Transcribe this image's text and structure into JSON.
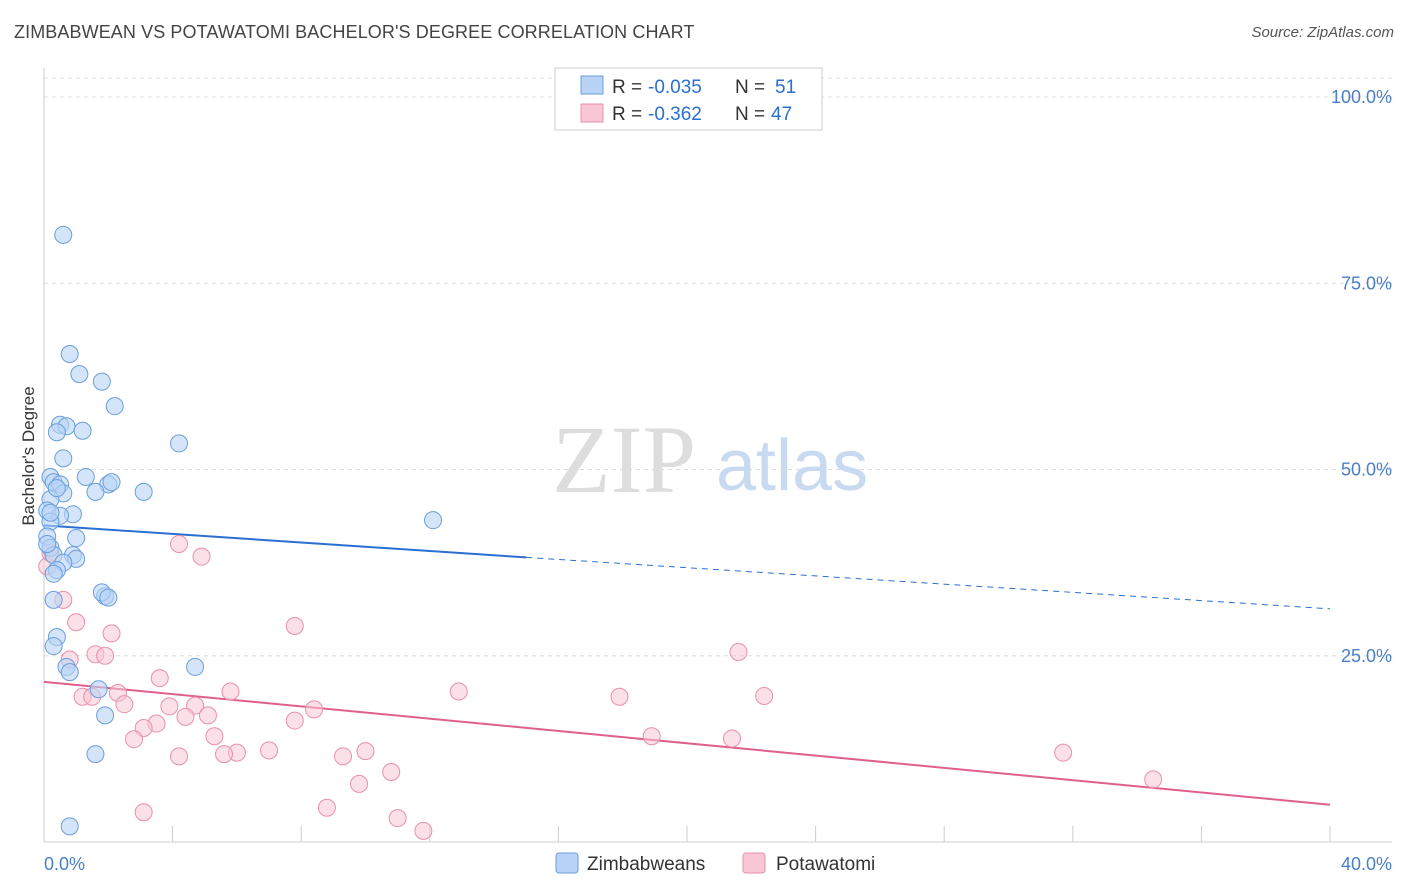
{
  "header": {
    "title": "ZIMBABWEAN VS POTAWATOMI BACHELOR'S DEGREE CORRELATION CHART",
    "source": "Source: ZipAtlas.com"
  },
  "watermark": {
    "zip": "ZIP",
    "atlas": "atlas"
  },
  "colors": {
    "blue_fill": "#b8d3f5",
    "blue_stroke": "#6a9edc",
    "blue_line": "#2a6fd1",
    "pink_fill": "#f8c6d4",
    "pink_stroke": "#e890ab",
    "pink_line": "#e0608d",
    "grid": "#dddddd",
    "tick_text": "#4a7fc8"
  },
  "chart_data": {
    "type": "scatter",
    "title": "ZIMBABWEAN VS POTAWATOMI BACHELOR'S DEGREE CORRELATION CHART",
    "xlabel": "",
    "ylabel": "Bachelor's Degree",
    "xlim": [
      0,
      40
    ],
    "ylim": [
      0,
      103
    ],
    "x_tick_labels": [
      "0.0%",
      "40.0%"
    ],
    "y_ticks": [
      25,
      50,
      75,
      100
    ],
    "y_tick_labels": [
      "25.0%",
      "50.0%",
      "75.0%",
      "100.0%"
    ],
    "grid": true,
    "legend": [
      {
        "r_label": "R =",
        "r_value": "-0.035",
        "n_label": "N =",
        "n_value": "51"
      },
      {
        "r_label": "R =",
        "r_value": "-0.362",
        "n_label": "N =",
        "n_value": "47"
      }
    ],
    "series": [
      {
        "name": "Zimbabweans",
        "trend": {
          "x0": 0,
          "y0": 42.5,
          "x1": 15.0,
          "y1": 38.2,
          "x_dash_end": 40,
          "y_dash_end": 31.3
        },
        "points": [
          [
            0.6,
            81.5
          ],
          [
            0.8,
            65.5
          ],
          [
            1.1,
            62.8
          ],
          [
            1.8,
            61.8
          ],
          [
            2.2,
            58.5
          ],
          [
            0.5,
            56.0
          ],
          [
            0.7,
            55.8
          ],
          [
            1.2,
            55.2
          ],
          [
            0.4,
            55.0
          ],
          [
            4.2,
            53.5
          ],
          [
            0.6,
            51.5
          ],
          [
            0.2,
            49.0
          ],
          [
            0.3,
            48.3
          ],
          [
            0.5,
            48.0
          ],
          [
            1.3,
            49.0
          ],
          [
            2.0,
            48.0
          ],
          [
            2.1,
            48.3
          ],
          [
            1.6,
            47.0
          ],
          [
            3.1,
            47.0
          ],
          [
            0.6,
            46.8
          ],
          [
            0.2,
            46.0
          ],
          [
            0.1,
            44.5
          ],
          [
            0.9,
            44.0
          ],
          [
            0.5,
            43.8
          ],
          [
            0.2,
            43.0
          ],
          [
            12.1,
            43.2
          ],
          [
            0.1,
            41.0
          ],
          [
            1.0,
            40.8
          ],
          [
            0.2,
            39.5
          ],
          [
            0.3,
            38.5
          ],
          [
            0.9,
            38.5
          ],
          [
            1.0,
            38.0
          ],
          [
            0.6,
            37.5
          ],
          [
            0.4,
            36.5
          ],
          [
            0.3,
            36.0
          ],
          [
            1.9,
            33.0
          ],
          [
            1.8,
            33.5
          ],
          [
            0.3,
            32.5
          ],
          [
            2.0,
            32.8
          ],
          [
            0.4,
            27.5
          ],
          [
            0.3,
            26.3
          ],
          [
            4.7,
            23.5
          ],
          [
            0.7,
            23.5
          ],
          [
            0.8,
            22.8
          ],
          [
            1.7,
            20.5
          ],
          [
            1.9,
            17.0
          ],
          [
            1.6,
            11.8
          ],
          [
            0.8,
            2.1
          ],
          [
            0.1,
            40.0
          ],
          [
            0.2,
            44.2
          ],
          [
            0.4,
            47.5
          ]
        ]
      },
      {
        "name": "Potawatomi",
        "trend": {
          "x0": 0,
          "y0": 21.5,
          "x1": 40,
          "y1": 5.0
        },
        "points": [
          [
            0.1,
            37.0
          ],
          [
            0.2,
            38.8
          ],
          [
            0.6,
            32.5
          ],
          [
            1.0,
            29.5
          ],
          [
            2.1,
            28.0
          ],
          [
            4.2,
            40.0
          ],
          [
            4.9,
            38.3
          ],
          [
            7.8,
            29.0
          ],
          [
            1.6,
            25.2
          ],
          [
            1.9,
            25.0
          ],
          [
            0.8,
            24.5
          ],
          [
            3.6,
            22.0
          ],
          [
            5.8,
            20.2
          ],
          [
            1.2,
            19.5
          ],
          [
            1.5,
            19.5
          ],
          [
            2.3,
            20.0
          ],
          [
            2.5,
            18.5
          ],
          [
            3.9,
            18.2
          ],
          [
            4.7,
            18.3
          ],
          [
            8.4,
            17.8
          ],
          [
            5.1,
            17.0
          ],
          [
            4.4,
            16.8
          ],
          [
            3.5,
            15.9
          ],
          [
            7.8,
            16.3
          ],
          [
            3.1,
            15.3
          ],
          [
            5.3,
            14.2
          ],
          [
            2.8,
            13.8
          ],
          [
            6.0,
            12.0
          ],
          [
            7.0,
            12.3
          ],
          [
            9.3,
            11.5
          ],
          [
            10.0,
            12.2
          ],
          [
            4.2,
            11.5
          ],
          [
            5.6,
            11.8
          ],
          [
            10.8,
            9.4
          ],
          [
            9.8,
            7.8
          ],
          [
            8.8,
            4.6
          ],
          [
            3.1,
            4.0
          ],
          [
            11.0,
            3.2
          ],
          [
            11.8,
            1.5
          ],
          [
            12.9,
            20.2
          ],
          [
            17.9,
            19.5
          ],
          [
            18.9,
            14.2
          ],
          [
            21.4,
            13.9
          ],
          [
            21.6,
            25.5
          ],
          [
            22.4,
            19.6
          ],
          [
            31.7,
            12.0
          ],
          [
            34.5,
            8.4
          ]
        ]
      }
    ]
  },
  "bottom_legend": [
    "Zimbabweans",
    "Potawatomi"
  ]
}
